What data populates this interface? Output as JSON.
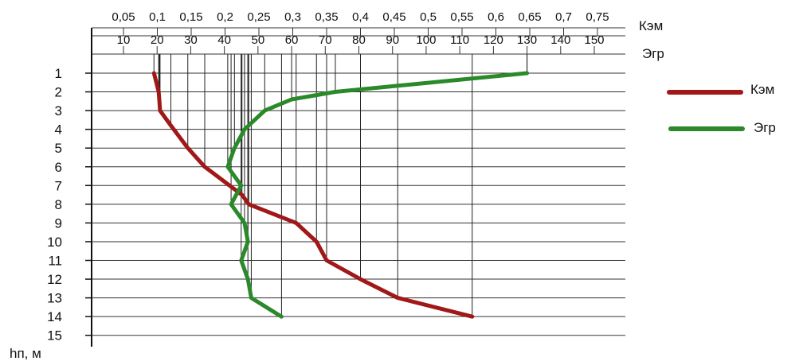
{
  "chart_data": {
    "type": "line",
    "x_top_axis": {
      "label": "Кэм",
      "min": 0.05,
      "max": 0.75,
      "ticks": [
        "0,05",
        "0,1",
        "0,15",
        "0,2",
        "0,25",
        "0,3",
        "0,35",
        "0,4",
        "0,45",
        "0,5",
        "0,55",
        "0,6",
        "0,65",
        "0,7",
        "0,75"
      ]
    },
    "x_bottom_axis": {
      "label": "Эгр",
      "min": 0,
      "max": 150,
      "ticks": [
        "10",
        "20",
        "30",
        "40",
        "50",
        "60",
        "70",
        "80",
        "90",
        "100",
        "110",
        "120",
        "130",
        "140",
        "150"
      ]
    },
    "y_axis": {
      "label": "hп, м",
      "min": 1,
      "max": 15,
      "inverted": true,
      "ticks": [
        "1",
        "2",
        "3",
        "4",
        "5",
        "6",
        "7",
        "8",
        "9",
        "10",
        "11",
        "12",
        "13",
        "14",
        "15"
      ]
    },
    "legend": {
      "placement": "right"
    },
    "series": [
      {
        "name": "Кэм",
        "color": "#a01818",
        "axis": "top",
        "points": [
          [
            0.095,
            1
          ],
          [
            0.102,
            2
          ],
          [
            0.103,
            2.5
          ],
          [
            0.104,
            3
          ],
          [
            0.12,
            3.8
          ],
          [
            0.145,
            5
          ],
          [
            0.17,
            6
          ],
          [
            0.225,
            7.5
          ],
          [
            0.235,
            8
          ],
          [
            0.305,
            9
          ],
          [
            0.335,
            10
          ],
          [
            0.35,
            11
          ],
          [
            0.4,
            12
          ],
          [
            0.455,
            13
          ],
          [
            0.565,
            14
          ]
        ]
      },
      {
        "name": "Эгр",
        "color": "#2a8a2a",
        "axis": "bottom",
        "points": [
          [
            130,
            1
          ],
          [
            73,
            2
          ],
          [
            60,
            2.4
          ],
          [
            52,
            3
          ],
          [
            46,
            4
          ],
          [
            43,
            5
          ],
          [
            41,
            6
          ],
          [
            45,
            7
          ],
          [
            42,
            8
          ],
          [
            46,
            9
          ],
          [
            47,
            10
          ],
          [
            45,
            11
          ],
          [
            47,
            12
          ],
          [
            48,
            13
          ],
          [
            57,
            14
          ]
        ]
      }
    ]
  }
}
